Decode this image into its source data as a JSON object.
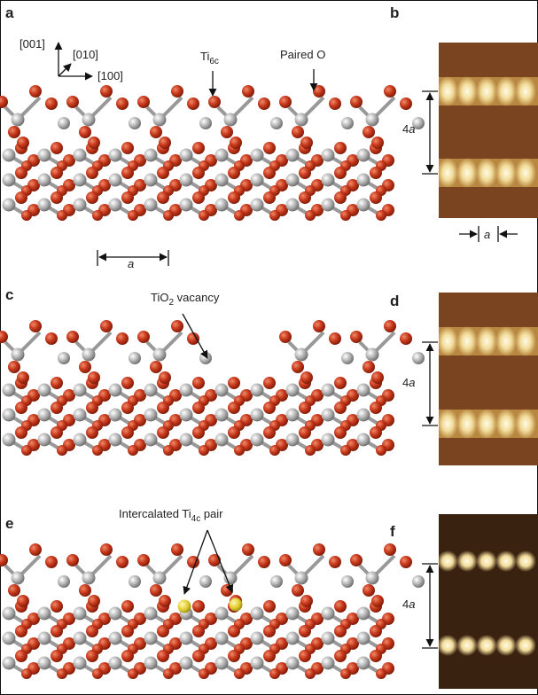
{
  "panels": {
    "a": {
      "label": "a",
      "axes": {
        "z": "[001]",
        "y": "[010]",
        "x": "[100]"
      },
      "ti6c": {
        "base": "Ti",
        "sub": "6c"
      },
      "paired_o": "Paired O",
      "period": "a"
    },
    "b": {
      "label": "b",
      "height": {
        "num": "4",
        "unit": "a"
      },
      "period": "a"
    },
    "c": {
      "label": "c",
      "vacancy": {
        "base": "TiO",
        "sub": "2",
        "rest": " vacancy"
      }
    },
    "d": {
      "label": "d",
      "height": {
        "num": "4",
        "unit": "a"
      }
    },
    "e": {
      "label": "e",
      "pair": {
        "base": "Intercalated Ti",
        "sub": "4c",
        "rest": " pair"
      }
    },
    "f": {
      "label": "f",
      "height": {
        "num": "4",
        "unit": "a"
      }
    }
  }
}
